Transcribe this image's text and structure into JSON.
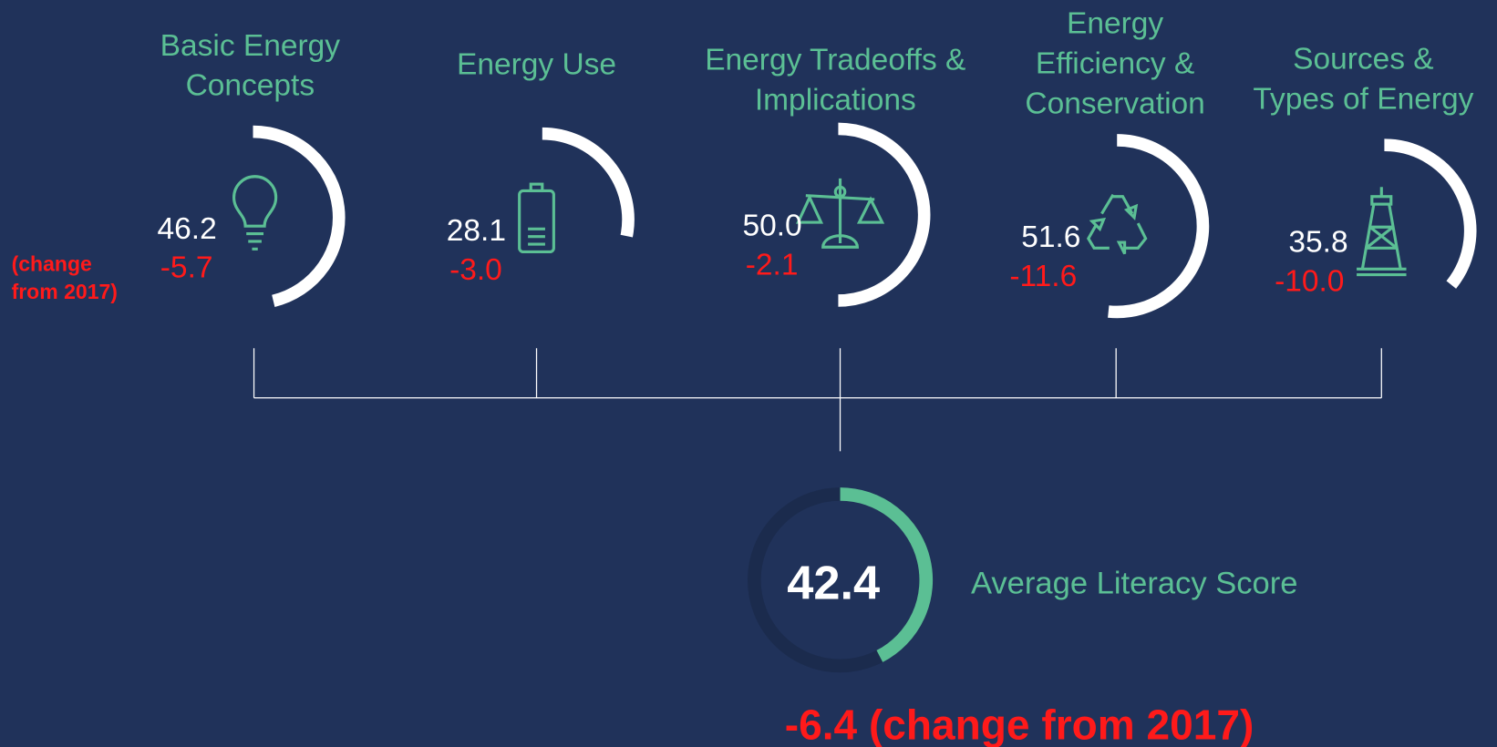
{
  "side_note": [
    "(change",
    "from 2017)"
  ],
  "topics": [
    {
      "title": [
        "Basic Energy",
        "Concepts"
      ],
      "score": "46.2",
      "change": "-5.7"
    },
    {
      "title": [
        "Energy Use"
      ],
      "score": "28.1",
      "change": "-3.0"
    },
    {
      "title": [
        "Energy Tradeoffs &",
        "Implications"
      ],
      "score": "50.0",
      "change": "-2.1"
    },
    {
      "title": [
        "Energy",
        "Efficiency &",
        "Conservation"
      ],
      "score": "51.6",
      "change": "-11.6"
    },
    {
      "title": [
        "Sources &",
        "Types of Energy"
      ],
      "score": "35.8",
      "change": "-10.0"
    }
  ],
  "average": {
    "score": "42.4",
    "label": "Average Literacy Score",
    "change": "-6.4 (change from 2017)"
  }
}
